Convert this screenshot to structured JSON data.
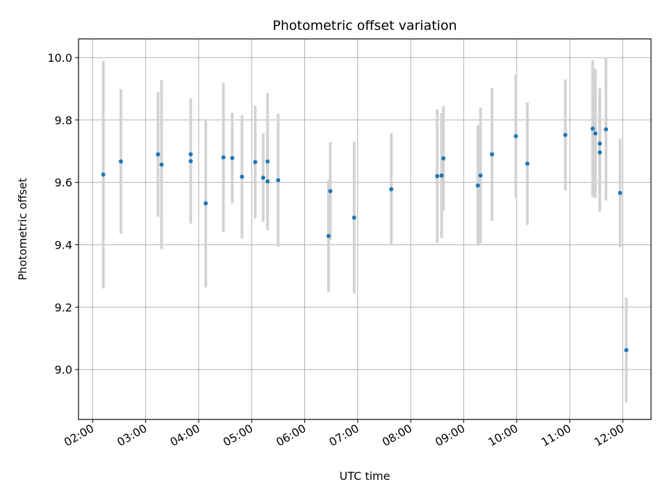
{
  "chart_data": {
    "type": "scatter",
    "title": "Photometric offset variation",
    "xlabel": "UTC time",
    "ylabel": "Photometric offset",
    "x_ticks": [
      "02:00",
      "03:00",
      "04:00",
      "05:00",
      "06:00",
      "07:00",
      "08:00",
      "09:00",
      "10:00",
      "11:00",
      "12:00"
    ],
    "y_ticks": [
      "9.0",
      "9.2",
      "9.4",
      "9.6",
      "9.8",
      "10.0"
    ],
    "xlim": [
      "01:44",
      "12:32"
    ],
    "ylim": [
      8.84,
      10.06
    ],
    "grid": true,
    "marker_color": "#1f77b4",
    "errorbar_color": "#d3d3d3",
    "points": [
      {
        "x": "02:12",
        "y": 9.625,
        "err": 0.365
      },
      {
        "x": "02:32",
        "y": 9.667,
        "err": 0.232
      },
      {
        "x": "03:14",
        "y": 9.69,
        "err": 0.2
      },
      {
        "x": "03:18",
        "y": 9.657,
        "err": 0.271
      },
      {
        "x": "03:51",
        "y": 9.69,
        "err": 0.18
      },
      {
        "x": "03:51",
        "y": 9.668,
        "err": 0.2
      },
      {
        "x": "04:08",
        "y": 9.533,
        "err": 0.27
      },
      {
        "x": "04:28",
        "y": 9.68,
        "err": 0.24
      },
      {
        "x": "04:38",
        "y": 9.678,
        "err": 0.145
      },
      {
        "x": "04:49",
        "y": 9.618,
        "err": 0.198
      },
      {
        "x": "05:04",
        "y": 9.665,
        "err": 0.18
      },
      {
        "x": "05:13",
        "y": 9.615,
        "err": 0.142
      },
      {
        "x": "05:18",
        "y": 9.603,
        "err": 0.145
      },
      {
        "x": "05:18",
        "y": 9.667,
        "err": 0.22
      },
      {
        "x": "05:30",
        "y": 9.607,
        "err": 0.213
      },
      {
        "x": "06:27",
        "y": 9.428,
        "err": 0.18
      },
      {
        "x": "06:29",
        "y": 9.572,
        "err": 0.157
      },
      {
        "x": "06:56",
        "y": 9.487,
        "err": 0.243
      },
      {
        "x": "07:38",
        "y": 9.578,
        "err": 0.18
      },
      {
        "x": "08:30",
        "y": 9.62,
        "err": 0.215
      },
      {
        "x": "08:35",
        "y": 9.622,
        "err": 0.2
      },
      {
        "x": "08:37",
        "y": 9.677,
        "err": 0.168
      },
      {
        "x": "09:16",
        "y": 9.59,
        "err": 0.193
      },
      {
        "x": "09:19",
        "y": 9.622,
        "err": 0.218
      },
      {
        "x": "09:32",
        "y": 9.69,
        "err": 0.213
      },
      {
        "x": "09:59",
        "y": 9.748,
        "err": 0.197
      },
      {
        "x": "10:12",
        "y": 9.66,
        "err": 0.197
      },
      {
        "x": "10:55",
        "y": 9.752,
        "err": 0.178
      },
      {
        "x": "11:26",
        "y": 9.772,
        "err": 0.22
      },
      {
        "x": "11:29",
        "y": 9.757,
        "err": 0.207
      },
      {
        "x": "11:34",
        "y": 9.724,
        "err": 0.18
      },
      {
        "x": "11:34",
        "y": 9.696,
        "err": 0.19
      },
      {
        "x": "11:41",
        "y": 9.77,
        "err": 0.228
      },
      {
        "x": "11:57",
        "y": 9.566,
        "err": 0.174
      },
      {
        "x": "12:04",
        "y": 9.062,
        "err": 0.168
      }
    ]
  }
}
